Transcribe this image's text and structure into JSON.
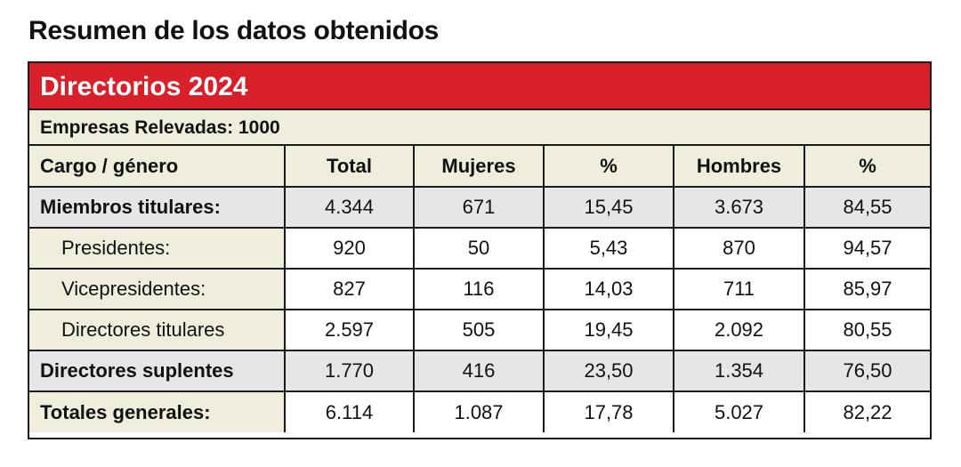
{
  "page": {
    "title": "Resumen de los datos obtenidos"
  },
  "card": {
    "banner": "Directorios 2024",
    "subheader": "Empresas Relevadas: 1000"
  },
  "table": {
    "columns": [
      "Cargo / género",
      "Total",
      "Mujeres",
      "%",
      "Hombres",
      "%"
    ],
    "rows": [
      {
        "label": "Miembros titulares:",
        "total": "4.344",
        "mujeres": "671",
        "pct_m": "15,45",
        "hombres": "3.673",
        "pct_h": "84,55"
      },
      {
        "label": "Presidentes:",
        "total": "920",
        "mujeres": "50",
        "pct_m": "5,43",
        "hombres": "870",
        "pct_h": "94,57"
      },
      {
        "label": "Vicepresidentes:",
        "total": "827",
        "mujeres": "116",
        "pct_m": "14,03",
        "hombres": "711",
        "pct_h": "85,97"
      },
      {
        "label": "Directores titulares",
        "total": "2.597",
        "mujeres": "505",
        "pct_m": "19,45",
        "hombres": "2.092",
        "pct_h": "80,55"
      },
      {
        "label": "Directores suplentes",
        "total": "1.770",
        "mujeres": "416",
        "pct_m": "23,50",
        "hombres": "1.354",
        "pct_h": "76,50"
      },
      {
        "label": "Totales generales:",
        "total": "6.114",
        "mujeres": "1.087",
        "pct_m": "17,78",
        "hombres": "5.027",
        "pct_h": "82,22"
      }
    ]
  },
  "colors": {
    "banner_red": "#d8202a",
    "beige": "#efeddc",
    "gray": "#e6e6e8"
  }
}
